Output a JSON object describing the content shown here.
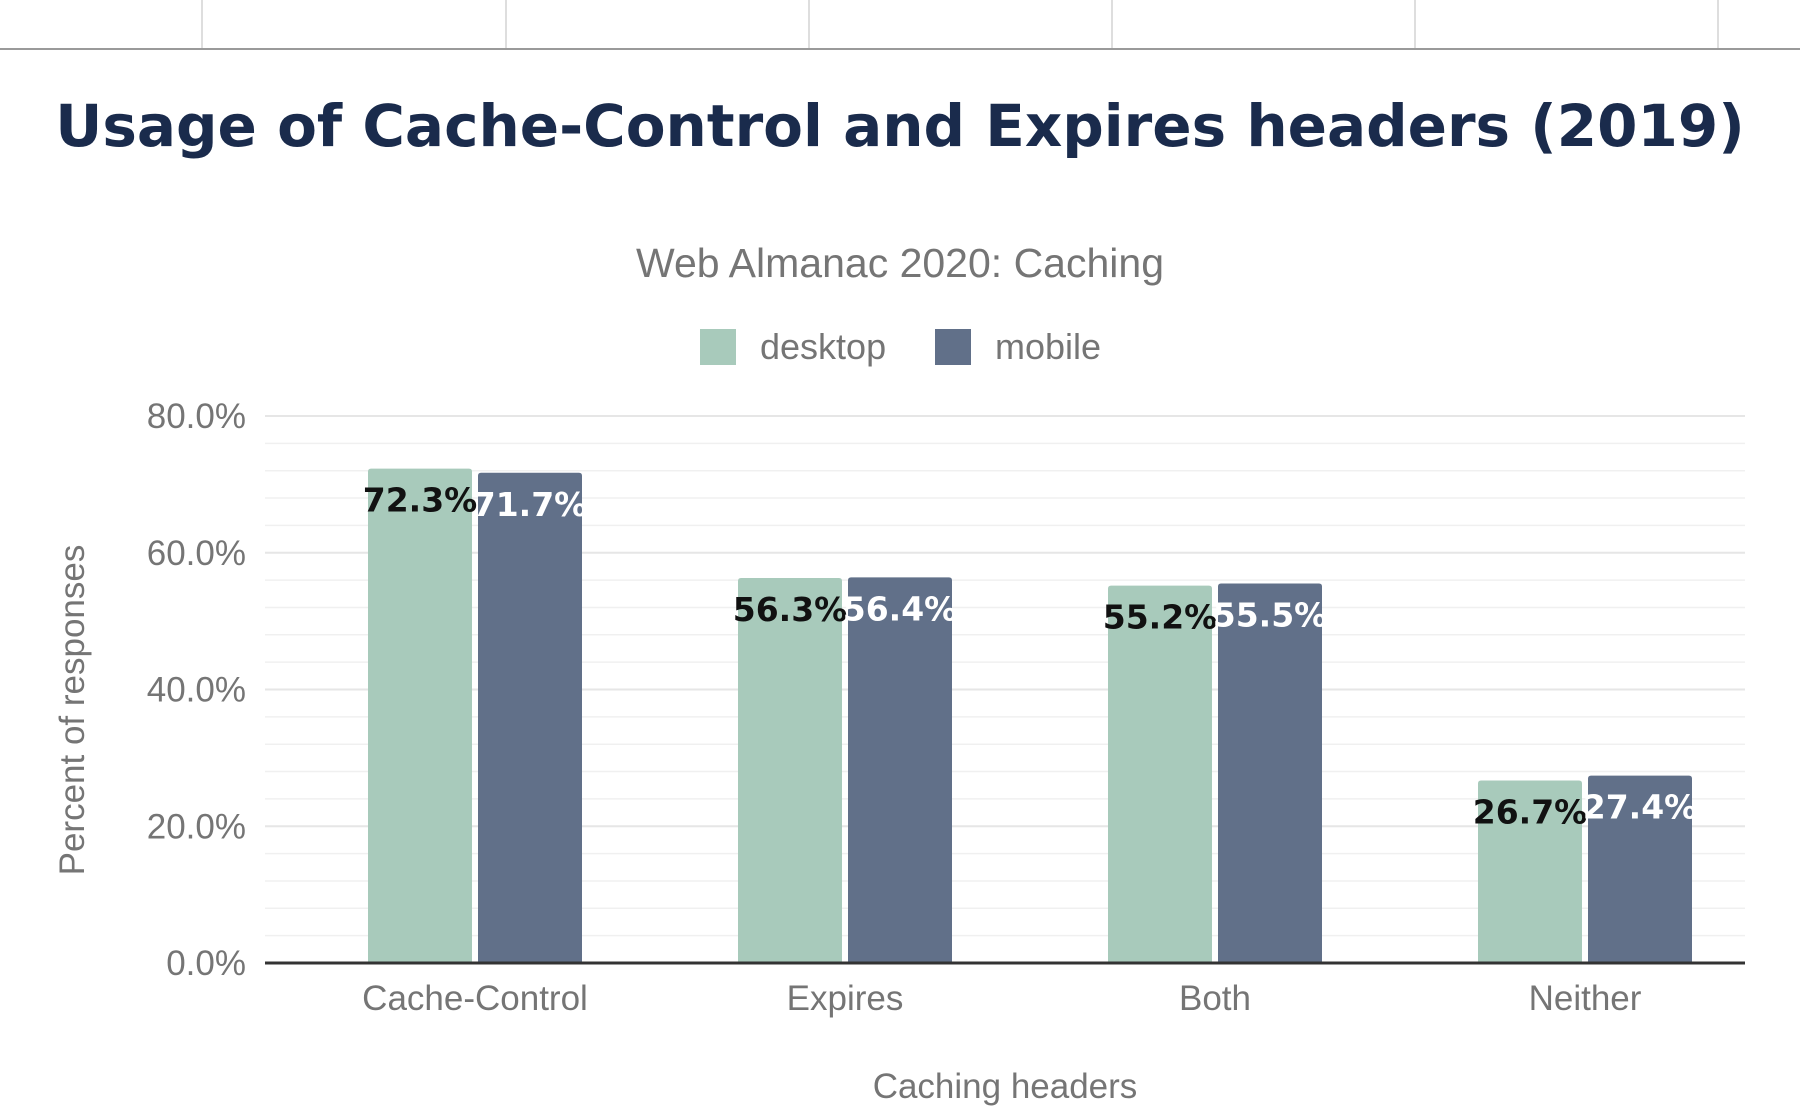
{
  "chart_data": {
    "type": "bar",
    "title": "Usage of Cache-Control and Expires headers (2019)",
    "subtitle": "Web Almanac 2020: Caching",
    "xlabel": "Caching headers",
    "ylabel": "Percent of responses",
    "categories": [
      "Cache-Control",
      "Expires",
      "Both",
      "Neither"
    ],
    "series": [
      {
        "name": "desktop",
        "color": "#a8cabb",
        "values": [
          72.3,
          56.3,
          55.2,
          26.7
        ],
        "labels": [
          "72.3%",
          "56.3%",
          "55.2%",
          "26.7%"
        ]
      },
      {
        "name": "mobile",
        "color": "#617089",
        "values": [
          71.7,
          56.4,
          55.5,
          27.4
        ],
        "labels": [
          "71.7%",
          "56.4%",
          "55.5%",
          "27.4%"
        ]
      }
    ],
    "ylim": [
      0,
      80
    ],
    "yticks": [
      0,
      20,
      40,
      60,
      80
    ],
    "ytick_labels": [
      "0.0%",
      "20.0%",
      "40.0%",
      "60.0%",
      "80.0%"
    ],
    "grid": true,
    "legend": "top-center"
  }
}
